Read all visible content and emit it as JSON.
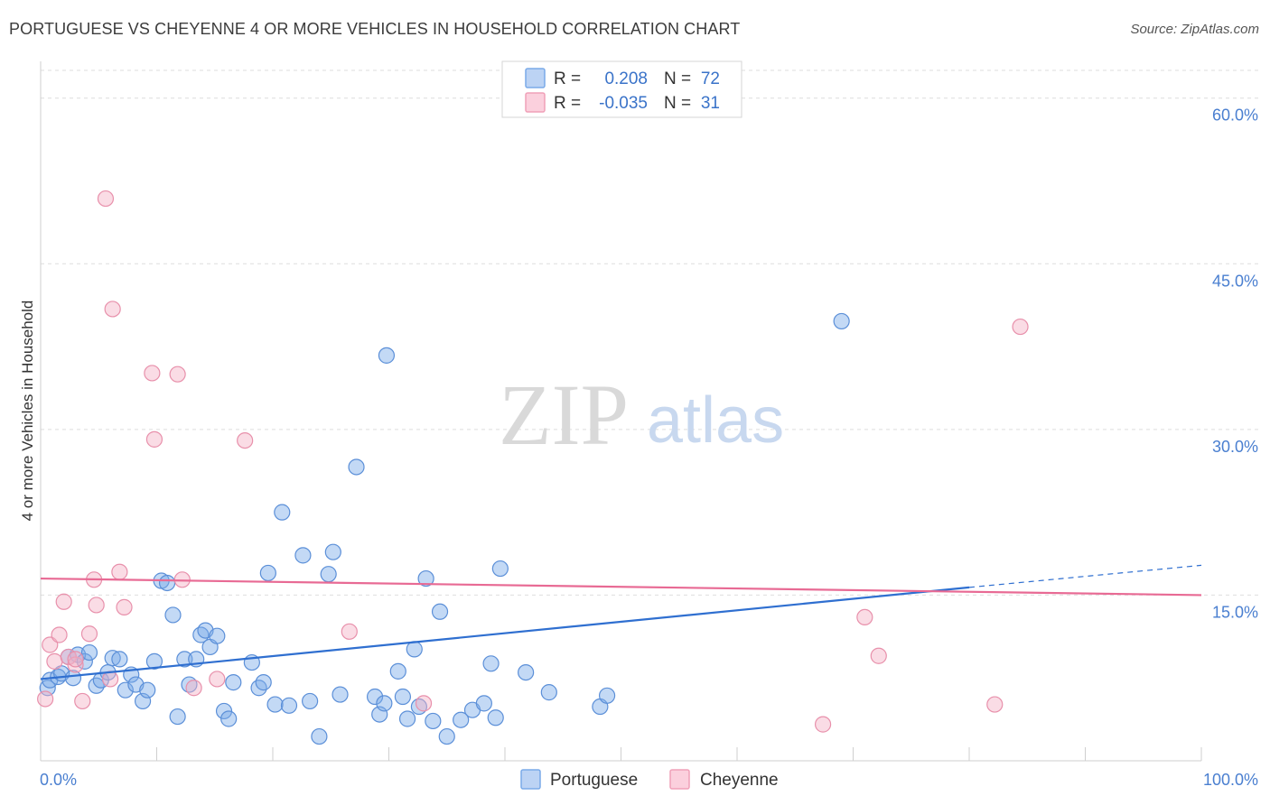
{
  "header": {
    "title": "PORTUGUESE VS CHEYENNE 4 OR MORE VEHICLES IN HOUSEHOLD CORRELATION CHART",
    "source": "Source: ZipAtlas.com"
  },
  "watermark": {
    "zip": "ZIP",
    "atlas": "atlas"
  },
  "legend": {
    "r_label": "R =",
    "n_label": "N =",
    "rows": [
      {
        "r": "0.208",
        "n": "72",
        "color": "#7aaae8"
      },
      {
        "r": "-0.035",
        "n": "31",
        "color": "#f0a0b8"
      }
    ]
  },
  "chart_data": {
    "type": "scatter",
    "title": "PORTUGUESE VS CHEYENNE 4 OR MORE VEHICLES IN HOUSEHOLD CORRELATION CHART",
    "xlabel": "",
    "ylabel": "4 or more Vehicles in Household",
    "xlim": [
      0,
      100
    ],
    "ylim": [
      0,
      63
    ],
    "x_tick_labels": [
      "0.0%",
      "100.0%"
    ],
    "y_ticks": [
      15,
      30,
      45,
      60
    ],
    "y_tick_labels": [
      "15.0%",
      "30.0%",
      "45.0%",
      "60.0%"
    ],
    "grid": true,
    "legend_position": "top-center",
    "series": [
      {
        "name": "Portuguese",
        "color": "#7aaae8",
        "stroke": "#5b8fd8",
        "trend": {
          "x": [
            0,
            80
          ],
          "y": [
            7.4,
            15.7
          ],
          "dashed_to": [
            100,
            17.7
          ],
          "color": "#2f6fd0"
        },
        "points": [
          [
            0.6,
            6.6
          ],
          [
            0.8,
            7.3
          ],
          [
            1.5,
            7.6
          ],
          [
            1.8,
            7.9
          ],
          [
            2.4,
            9.4
          ],
          [
            2.8,
            7.5
          ],
          [
            3.2,
            9.6
          ],
          [
            3.8,
            9.0
          ],
          [
            4.2,
            9.8
          ],
          [
            4.8,
            6.8
          ],
          [
            5.2,
            7.3
          ],
          [
            5.8,
            8.0
          ],
          [
            6.2,
            9.3
          ],
          [
            6.8,
            9.2
          ],
          [
            7.3,
            6.4
          ],
          [
            7.8,
            7.8
          ],
          [
            8.2,
            6.9
          ],
          [
            8.8,
            5.4
          ],
          [
            9.2,
            6.4
          ],
          [
            9.8,
            9.0
          ],
          [
            10.4,
            16.3
          ],
          [
            10.9,
            16.1
          ],
          [
            11.4,
            13.2
          ],
          [
            11.8,
            4.0
          ],
          [
            12.4,
            9.2
          ],
          [
            12.8,
            6.9
          ],
          [
            13.4,
            9.2
          ],
          [
            13.8,
            11.4
          ],
          [
            14.2,
            11.8
          ],
          [
            14.6,
            10.3
          ],
          [
            15.2,
            11.3
          ],
          [
            15.8,
            4.5
          ],
          [
            16.2,
            3.8
          ],
          [
            16.6,
            7.1
          ],
          [
            18.2,
            8.9
          ],
          [
            18.8,
            6.6
          ],
          [
            19.2,
            7.1
          ],
          [
            19.6,
            17.0
          ],
          [
            20.2,
            5.1
          ],
          [
            20.8,
            22.5
          ],
          [
            21.4,
            5.0
          ],
          [
            22.6,
            18.6
          ],
          [
            23.2,
            5.4
          ],
          [
            24.0,
            2.2
          ],
          [
            24.8,
            16.9
          ],
          [
            25.2,
            18.9
          ],
          [
            25.8,
            6.0
          ],
          [
            27.2,
            26.6
          ],
          [
            28.8,
            5.8
          ],
          [
            29.2,
            4.2
          ],
          [
            29.6,
            5.2
          ],
          [
            29.8,
            36.7
          ],
          [
            30.8,
            8.1
          ],
          [
            31.2,
            5.8
          ],
          [
            31.6,
            3.8
          ],
          [
            32.2,
            10.1
          ],
          [
            32.6,
            4.9
          ],
          [
            33.2,
            16.5
          ],
          [
            33.8,
            3.6
          ],
          [
            34.4,
            13.5
          ],
          [
            35.0,
            2.2
          ],
          [
            36.2,
            3.7
          ],
          [
            37.2,
            4.6
          ],
          [
            38.2,
            5.2
          ],
          [
            38.8,
            8.8
          ],
          [
            39.2,
            3.9
          ],
          [
            39.6,
            17.4
          ],
          [
            41.8,
            8.0
          ],
          [
            43.8,
            6.2
          ],
          [
            48.2,
            4.9
          ],
          [
            48.8,
            5.9
          ],
          [
            69.0,
            39.8
          ]
        ]
      },
      {
        "name": "Cheyenne",
        "color": "#f3b2c6",
        "stroke": "#e890ab",
        "trend": {
          "x": [
            0,
            100
          ],
          "y": [
            16.5,
            15.0
          ],
          "color": "#e86a94"
        },
        "points": [
          [
            0.4,
            5.6
          ],
          [
            0.8,
            10.5
          ],
          [
            1.2,
            9.0
          ],
          [
            1.6,
            11.4
          ],
          [
            2.0,
            14.4
          ],
          [
            2.4,
            9.4
          ],
          [
            3.0,
            8.7
          ],
          [
            3.6,
            5.4
          ],
          [
            4.2,
            11.5
          ],
          [
            4.6,
            16.4
          ],
          [
            4.8,
            14.1
          ],
          [
            5.6,
            50.9
          ],
          [
            6.0,
            7.4
          ],
          [
            6.2,
            40.9
          ],
          [
            6.8,
            17.1
          ],
          [
            7.2,
            13.9
          ],
          [
            9.6,
            35.1
          ],
          [
            9.8,
            29.1
          ],
          [
            11.8,
            35.0
          ],
          [
            12.2,
            16.4
          ],
          [
            13.2,
            6.6
          ],
          [
            15.2,
            7.4
          ],
          [
            17.6,
            29.0
          ],
          [
            26.6,
            11.7
          ],
          [
            33.0,
            5.2
          ],
          [
            67.4,
            3.3
          ],
          [
            71.0,
            13.0
          ],
          [
            72.2,
            9.5
          ],
          [
            82.2,
            5.1
          ],
          [
            84.4,
            39.3
          ],
          [
            3.0,
            9.2
          ]
        ]
      }
    ]
  },
  "bottom_legend": [
    {
      "label": "Portuguese",
      "color": "#7aaae8"
    },
    {
      "label": "Cheyenne",
      "color": "#f3b2c6"
    }
  ]
}
